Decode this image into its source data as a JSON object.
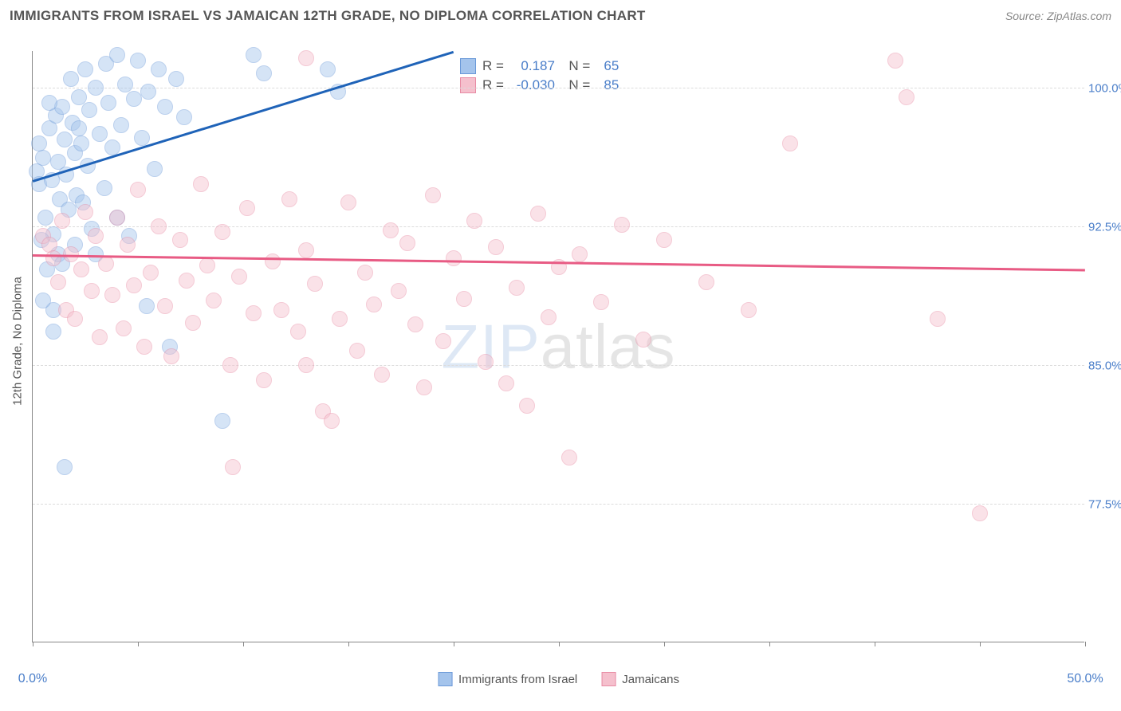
{
  "header": {
    "title": "IMMIGRANTS FROM ISRAEL VS JAMAICAN 12TH GRADE, NO DIPLOMA CORRELATION CHART",
    "source": "Source: ZipAtlas.com"
  },
  "chart": {
    "type": "scatter",
    "y_axis_label": "12th Grade, No Diploma",
    "background_color": "#ffffff",
    "grid_color": "#dcdcdc",
    "axis_color": "#888888",
    "label_color": "#4a7ec9",
    "title_fontsize": 17,
    "label_fontsize": 15,
    "marker_radius": 10,
    "marker_opacity": 0.45,
    "xlim": [
      0,
      50
    ],
    "ylim": [
      70,
      102
    ],
    "x_ticks": [
      0,
      5,
      10,
      15,
      20,
      25,
      30,
      35,
      40,
      45,
      50
    ],
    "x_tick_labels": {
      "0": "0.0%",
      "50": "50.0%"
    },
    "y_gridlines": [
      77.5,
      85.0,
      92.5,
      100.0
    ],
    "y_tick_labels": [
      "77.5%",
      "85.0%",
      "92.5%",
      "100.0%"
    ],
    "watermark": {
      "part1": "ZIP",
      "part2": "atlas"
    },
    "series": [
      {
        "name": "Immigrants from Israel",
        "fill_color": "#a4c4ec",
        "stroke_color": "#6a99d8",
        "trend_color": "#1f63b8",
        "R": "0.187",
        "N": "65",
        "trend": {
          "x1": 0,
          "y1": 95.0,
          "x2": 20,
          "y2": 102.0
        },
        "points": [
          [
            0.2,
            95.5
          ],
          [
            0.3,
            94.8
          ],
          [
            0.5,
            96.2
          ],
          [
            0.6,
            93.0
          ],
          [
            0.8,
            97.8
          ],
          [
            0.9,
            95.0
          ],
          [
            1.0,
            92.1
          ],
          [
            1.1,
            98.5
          ],
          [
            1.2,
            96.0
          ],
          [
            1.3,
            94.0
          ],
          [
            1.4,
            99.0
          ],
          [
            1.5,
            97.2
          ],
          [
            1.6,
            95.3
          ],
          [
            1.7,
            93.4
          ],
          [
            1.8,
            100.5
          ],
          [
            1.9,
            98.1
          ],
          [
            2.0,
            96.5
          ],
          [
            2.1,
            94.2
          ],
          [
            2.2,
            99.5
          ],
          [
            2.3,
            97.0
          ],
          [
            2.5,
            101.0
          ],
          [
            2.6,
            95.8
          ],
          [
            2.7,
            98.8
          ],
          [
            2.8,
            92.4
          ],
          [
            3.0,
            100.0
          ],
          [
            3.2,
            97.5
          ],
          [
            3.4,
            94.6
          ],
          [
            3.5,
            101.3
          ],
          [
            3.6,
            99.2
          ],
          [
            3.8,
            96.8
          ],
          [
            4.0,
            101.8
          ],
          [
            4.2,
            98.0
          ],
          [
            4.4,
            100.2
          ],
          [
            4.6,
            92.0
          ],
          [
            4.8,
            99.4
          ],
          [
            5.0,
            101.5
          ],
          [
            5.2,
            97.3
          ],
          [
            5.5,
            99.8
          ],
          [
            5.8,
            95.6
          ],
          [
            6.0,
            101.0
          ],
          [
            6.3,
            99.0
          ],
          [
            6.5,
            86.0
          ],
          [
            6.8,
            100.5
          ],
          [
            7.2,
            98.4
          ],
          [
            1.0,
            88.0
          ],
          [
            1.2,
            91.0
          ],
          [
            1.5,
            79.5
          ],
          [
            0.4,
            91.8
          ],
          [
            0.7,
            90.2
          ],
          [
            2.0,
            91.5
          ],
          [
            9.0,
            82.0
          ],
          [
            10.5,
            101.8
          ],
          [
            11.0,
            100.8
          ],
          [
            14.0,
            101.0
          ],
          [
            14.5,
            99.8
          ],
          [
            3.0,
            91.0
          ],
          [
            0.3,
            97.0
          ],
          [
            0.8,
            99.2
          ],
          [
            1.4,
            90.5
          ],
          [
            2.4,
            93.8
          ],
          [
            4.0,
            93.0
          ],
          [
            5.4,
            88.2
          ],
          [
            0.5,
            88.5
          ],
          [
            1.0,
            86.8
          ],
          [
            2.2,
            97.8
          ]
        ]
      },
      {
        "name": "Jamaicans",
        "fill_color": "#f5c0cd",
        "stroke_color": "#e88ba4",
        "trend_color": "#e85b84",
        "R": "-0.030",
        "N": "85",
        "trend": {
          "x1": 0,
          "y1": 91.0,
          "x2": 50,
          "y2": 90.2
        },
        "points": [
          [
            0.5,
            92.0
          ],
          [
            0.8,
            91.5
          ],
          [
            1.0,
            90.8
          ],
          [
            1.2,
            89.5
          ],
          [
            1.4,
            92.8
          ],
          [
            1.6,
            88.0
          ],
          [
            1.8,
            91.0
          ],
          [
            2.0,
            87.5
          ],
          [
            2.3,
            90.2
          ],
          [
            2.5,
            93.3
          ],
          [
            2.8,
            89.0
          ],
          [
            3.0,
            92.0
          ],
          [
            3.2,
            86.5
          ],
          [
            3.5,
            90.5
          ],
          [
            3.8,
            88.8
          ],
          [
            4.0,
            93.0
          ],
          [
            4.3,
            87.0
          ],
          [
            4.5,
            91.5
          ],
          [
            4.8,
            89.3
          ],
          [
            5.0,
            94.5
          ],
          [
            5.3,
            86.0
          ],
          [
            5.6,
            90.0
          ],
          [
            6.0,
            92.5
          ],
          [
            6.3,
            88.2
          ],
          [
            6.6,
            85.5
          ],
          [
            7.0,
            91.8
          ],
          [
            7.3,
            89.6
          ],
          [
            7.6,
            87.3
          ],
          [
            8.0,
            94.8
          ],
          [
            8.3,
            90.4
          ],
          [
            8.6,
            88.5
          ],
          [
            9.0,
            92.2
          ],
          [
            9.4,
            85.0
          ],
          [
            9.8,
            89.8
          ],
          [
            10.2,
            93.5
          ],
          [
            10.5,
            87.8
          ],
          [
            11.0,
            84.2
          ],
          [
            11.4,
            90.6
          ],
          [
            11.8,
            88.0
          ],
          [
            12.2,
            94.0
          ],
          [
            12.6,
            86.8
          ],
          [
            13.0,
            91.2
          ],
          [
            13.4,
            89.4
          ],
          [
            13.8,
            82.5
          ],
          [
            14.2,
            82.0
          ],
          [
            14.6,
            87.5
          ],
          [
            15.0,
            93.8
          ],
          [
            15.4,
            85.8
          ],
          [
            15.8,
            90.0
          ],
          [
            16.2,
            88.3
          ],
          [
            16.6,
            84.5
          ],
          [
            17.0,
            92.3
          ],
          [
            17.4,
            89.0
          ],
          [
            17.8,
            91.6
          ],
          [
            18.2,
            87.2
          ],
          [
            18.6,
            83.8
          ],
          [
            19.0,
            94.2
          ],
          [
            19.5,
            86.3
          ],
          [
            20.0,
            90.8
          ],
          [
            20.5,
            88.6
          ],
          [
            21.0,
            92.8
          ],
          [
            21.5,
            85.2
          ],
          [
            22.0,
            91.4
          ],
          [
            22.5,
            84.0
          ],
          [
            23.0,
            89.2
          ],
          [
            23.5,
            82.8
          ],
          [
            24.0,
            93.2
          ],
          [
            24.5,
            87.6
          ],
          [
            25.0,
            90.3
          ],
          [
            25.5,
            80.0
          ],
          [
            26.0,
            91.0
          ],
          [
            27.0,
            88.4
          ],
          [
            28.0,
            92.6
          ],
          [
            29.0,
            86.4
          ],
          [
            30.0,
            91.8
          ],
          [
            32.0,
            89.5
          ],
          [
            34.0,
            88.0
          ],
          [
            36.0,
            97.0
          ],
          [
            41.0,
            101.5
          ],
          [
            41.5,
            99.5
          ],
          [
            43.0,
            87.5
          ],
          [
            45.0,
            77.0
          ],
          [
            13.0,
            101.6
          ],
          [
            9.5,
            79.5
          ],
          [
            13.0,
            85.0
          ]
        ]
      }
    ],
    "legend": [
      {
        "label": "Immigrants from Israel",
        "fill_color": "#a4c4ec",
        "stroke_color": "#6a99d8"
      },
      {
        "label": "Jamaicans",
        "fill_color": "#f5c0cd",
        "stroke_color": "#e88ba4"
      }
    ]
  }
}
